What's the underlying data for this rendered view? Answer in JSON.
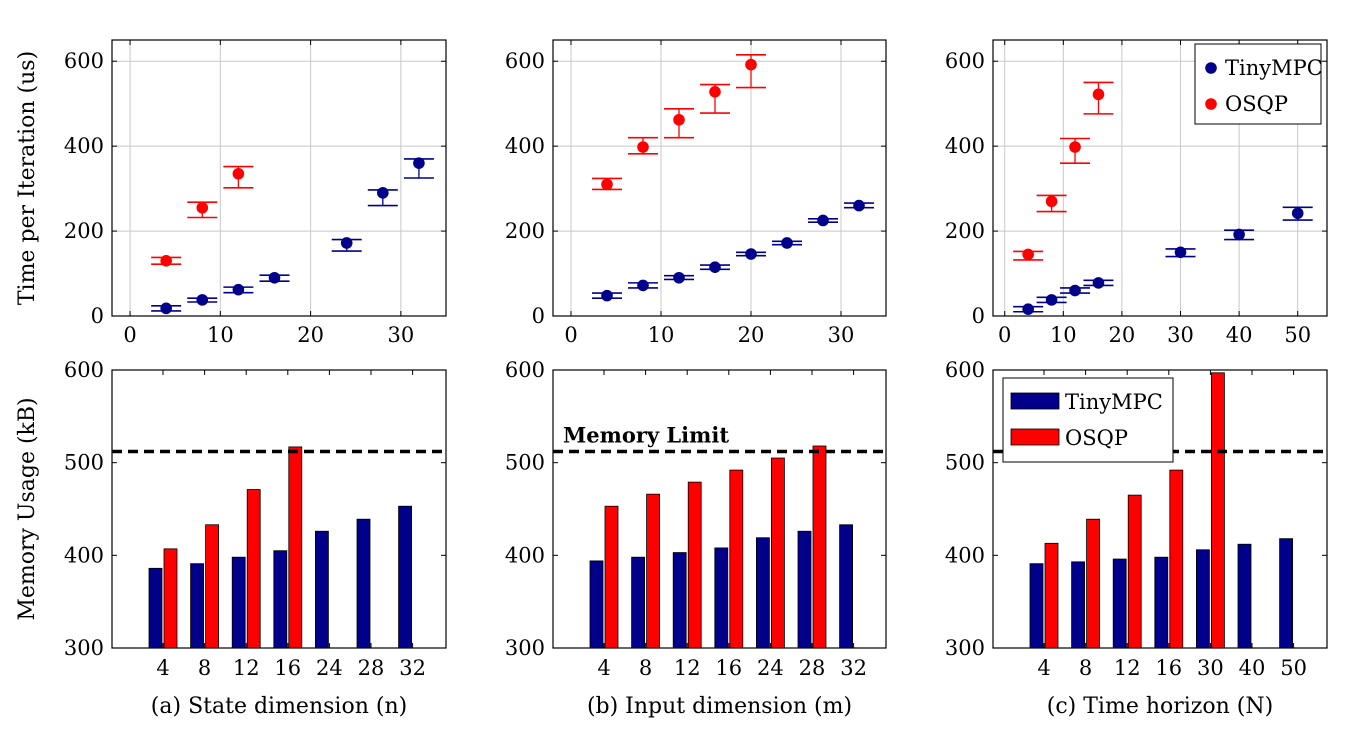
{
  "figure": {
    "colors": {
      "tinympc": "#00008b",
      "osqp": "#ff0000",
      "grid": "#c8c8c8",
      "limit": "#000000"
    }
  },
  "chart_data": [
    {
      "id": "a-time",
      "type": "scatter",
      "panel": "a",
      "row": "time",
      "ylabel": "Time per Iteration (us)",
      "xlim": [
        -2,
        35
      ],
      "ylim": [
        0,
        650
      ],
      "xticks": [
        0,
        10,
        20,
        30
      ],
      "yticks": [
        0,
        200,
        400,
        600
      ],
      "grid": true,
      "series": [
        {
          "name": "TinyMPC",
          "color": "#00008b",
          "points": [
            {
              "x": 4,
              "y": 18,
              "lo": 12,
              "hi": 24
            },
            {
              "x": 8,
              "y": 38,
              "lo": 33,
              "hi": 42
            },
            {
              "x": 12,
              "y": 62,
              "lo": 55,
              "hi": 68
            },
            {
              "x": 16,
              "y": 90,
              "lo": 82,
              "hi": 96
            },
            {
              "x": 24,
              "y": 172,
              "lo": 153,
              "hi": 180
            },
            {
              "x": 28,
              "y": 290,
              "lo": 260,
              "hi": 297
            },
            {
              "x": 32,
              "y": 360,
              "lo": 325,
              "hi": 370
            }
          ]
        },
        {
          "name": "OSQP",
          "color": "#ff0000",
          "points": [
            {
              "x": 4,
              "y": 130,
              "lo": 122,
              "hi": 138
            },
            {
              "x": 8,
              "y": 255,
              "lo": 232,
              "hi": 268
            },
            {
              "x": 12,
              "y": 335,
              "lo": 302,
              "hi": 352
            }
          ]
        }
      ]
    },
    {
      "id": "b-time",
      "type": "scatter",
      "panel": "b",
      "row": "time",
      "ylabel": "",
      "xlim": [
        -2,
        35
      ],
      "ylim": [
        0,
        650
      ],
      "xticks": [
        0,
        10,
        20,
        30
      ],
      "yticks": [
        0,
        200,
        400,
        600
      ],
      "grid": true,
      "series": [
        {
          "name": "TinyMPC",
          "color": "#00008b",
          "points": [
            {
              "x": 4,
              "y": 48,
              "lo": 42,
              "hi": 54
            },
            {
              "x": 8,
              "y": 72,
              "lo": 66,
              "hi": 78
            },
            {
              "x": 12,
              "y": 90,
              "lo": 86,
              "hi": 95
            },
            {
              "x": 16,
              "y": 115,
              "lo": 110,
              "hi": 120
            },
            {
              "x": 20,
              "y": 146,
              "lo": 142,
              "hi": 150
            },
            {
              "x": 24,
              "y": 172,
              "lo": 168,
              "hi": 176
            },
            {
              "x": 28,
              "y": 225,
              "lo": 221,
              "hi": 229
            },
            {
              "x": 32,
              "y": 260,
              "lo": 255,
              "hi": 266
            }
          ]
        },
        {
          "name": "OSQP",
          "color": "#ff0000",
          "points": [
            {
              "x": 4,
              "y": 310,
              "lo": 298,
              "hi": 324
            },
            {
              "x": 8,
              "y": 398,
              "lo": 382,
              "hi": 420
            },
            {
              "x": 12,
              "y": 462,
              "lo": 420,
              "hi": 488
            },
            {
              "x": 16,
              "y": 528,
              "lo": 478,
              "hi": 545
            },
            {
              "x": 20,
              "y": 592,
              "lo": 538,
              "hi": 615
            }
          ]
        }
      ]
    },
    {
      "id": "c-time",
      "type": "scatter",
      "panel": "c",
      "row": "time",
      "ylabel": "",
      "xlim": [
        -2,
        55
      ],
      "ylim": [
        0,
        650
      ],
      "xticks": [
        0,
        10,
        20,
        30,
        40,
        50
      ],
      "yticks": [
        0,
        200,
        400,
        600
      ],
      "grid": true,
      "legend": {
        "position": "top-right",
        "entries": [
          "TinyMPC",
          "OSQP"
        ]
      },
      "series": [
        {
          "name": "TinyMPC",
          "color": "#00008b",
          "points": [
            {
              "x": 4,
              "y": 16,
              "lo": 10,
              "hi": 22
            },
            {
              "x": 8,
              "y": 38,
              "lo": 32,
              "hi": 44
            },
            {
              "x": 12,
              "y": 60,
              "lo": 54,
              "hi": 66
            },
            {
              "x": 16,
              "y": 78,
              "lo": 72,
              "hi": 84
            },
            {
              "x": 30,
              "y": 150,
              "lo": 140,
              "hi": 158
            },
            {
              "x": 40,
              "y": 192,
              "lo": 180,
              "hi": 202
            },
            {
              "x": 50,
              "y": 242,
              "lo": 226,
              "hi": 256
            }
          ]
        },
        {
          "name": "OSQP",
          "color": "#ff0000",
          "points": [
            {
              "x": 4,
              "y": 145,
              "lo": 132,
              "hi": 152
            },
            {
              "x": 8,
              "y": 270,
              "lo": 246,
              "hi": 284
            },
            {
              "x": 12,
              "y": 398,
              "lo": 360,
              "hi": 418
            },
            {
              "x": 16,
              "y": 522,
              "lo": 476,
              "hi": 550
            }
          ]
        }
      ]
    },
    {
      "id": "a-mem",
      "type": "bar",
      "panel": "a",
      "row": "mem",
      "ylabel": "Memory Usage (kB)",
      "categories": [
        "4",
        "8",
        "12",
        "16",
        "24",
        "28",
        "32"
      ],
      "ylim": [
        300,
        600
      ],
      "yticks": [
        300,
        400,
        500,
        600
      ],
      "limit": {
        "value": 512,
        "label": ""
      },
      "series": [
        {
          "name": "TinyMPC",
          "color": "#00008b",
          "values": [
            386,
            391,
            398,
            405,
            426,
            439,
            453
          ]
        },
        {
          "name": "OSQP",
          "color": "#ff0000",
          "values": [
            407,
            433,
            471,
            517,
            null,
            null,
            null
          ]
        }
      ],
      "caption": "(a) State dimension (n)"
    },
    {
      "id": "b-mem",
      "type": "bar",
      "panel": "b",
      "row": "mem",
      "ylabel": "",
      "categories": [
        "4",
        "8",
        "12",
        "16",
        "24",
        "28",
        "32"
      ],
      "ylim": [
        300,
        600
      ],
      "yticks": [
        300,
        400,
        500,
        600
      ],
      "limit": {
        "value": 512,
        "label": "Memory Limit"
      },
      "series": [
        {
          "name": "TinyMPC",
          "color": "#00008b",
          "values": [
            394,
            398,
            403,
            408,
            419,
            426,
            433
          ]
        },
        {
          "name": "OSQP",
          "color": "#ff0000",
          "values": [
            453,
            466,
            479,
            492,
            505,
            518,
            null
          ]
        }
      ],
      "caption": "(b) Input dimension (m)"
    },
    {
      "id": "c-mem",
      "type": "bar",
      "panel": "c",
      "row": "mem",
      "ylabel": "",
      "categories": [
        "4",
        "8",
        "12",
        "16",
        "30",
        "40",
        "50"
      ],
      "ylim": [
        300,
        600
      ],
      "yticks": [
        300,
        400,
        500,
        600
      ],
      "limit": {
        "value": 512,
        "label": ""
      },
      "legend": {
        "position": "top-left",
        "entries": [
          "TinyMPC",
          "OSQP"
        ]
      },
      "series": [
        {
          "name": "TinyMPC",
          "color": "#00008b",
          "values": [
            391,
            393,
            396,
            398,
            406,
            412,
            418
          ]
        },
        {
          "name": "OSQP",
          "color": "#ff0000",
          "values": [
            413,
            439,
            465,
            492,
            597,
            null,
            null
          ]
        }
      ],
      "caption": "(c) Time horizon (N)"
    }
  ]
}
